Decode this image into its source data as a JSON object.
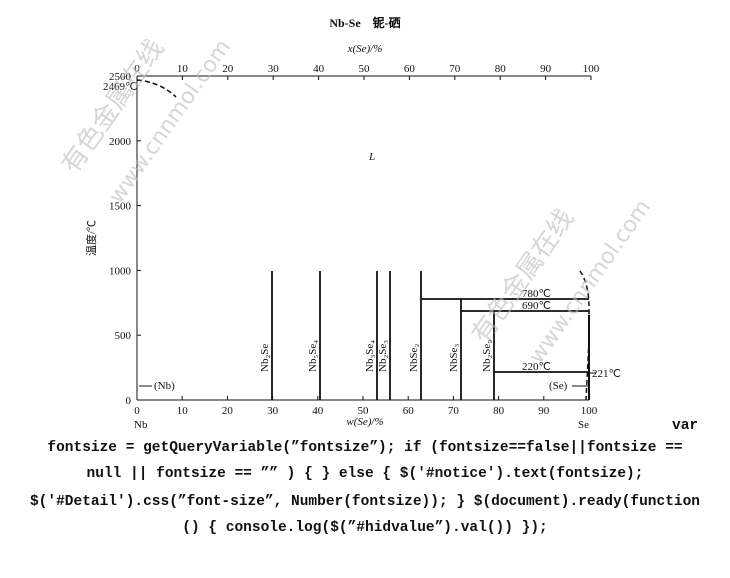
{
  "title": "Nb-Se　铌-硒",
  "top_axis": {
    "label": "x(Se)/%",
    "ticks": [
      0,
      10,
      20,
      30,
      40,
      50,
      60,
      70,
      80,
      90,
      100
    ]
  },
  "bottom_axis": {
    "label": "w(Se)/%",
    "ticks": [
      0,
      10,
      20,
      30,
      40,
      50,
      60,
      70,
      80,
      90,
      100
    ],
    "left_end": "Nb",
    "right_end": "Se"
  },
  "left_axis": {
    "label": "温度/℃",
    "ticks": [
      0,
      500,
      1000,
      1500,
      2000,
      2500
    ]
  },
  "annotations": {
    "melt_nb": "2469℃",
    "liquid": "L",
    "t780": "780℃",
    "t690": "690℃",
    "t220": "220℃",
    "t221": "221℃",
    "nb_solid": "(Nb)",
    "se_solid": "(Se)"
  },
  "phases": [
    "Nb₂Se",
    "Nb₅Se₄",
    "Nb₃Se₄",
    "Nb₂Se₃",
    "NbSe₂",
    "NbSe₃",
    "Nb₂Se₉"
  ],
  "watermarks": [
    "有色金属在线",
    "www.cnnmol.com",
    "有色金属在线",
    "www.cnnmol.com"
  ],
  "code_lines": [
    "var",
    "fontsize = getQueryVariable(”fontsize”); if (fontsize==false||fontsize ==",
    "null || fontsize == ”” ) { } else { $('#notice').text(fontsize);",
    "$('#Detail').css(”font-size”, Number(fontsize)); } $(document).ready(function",
    "() { console.log($(”#hidvalue”).val()) });"
  ]
}
